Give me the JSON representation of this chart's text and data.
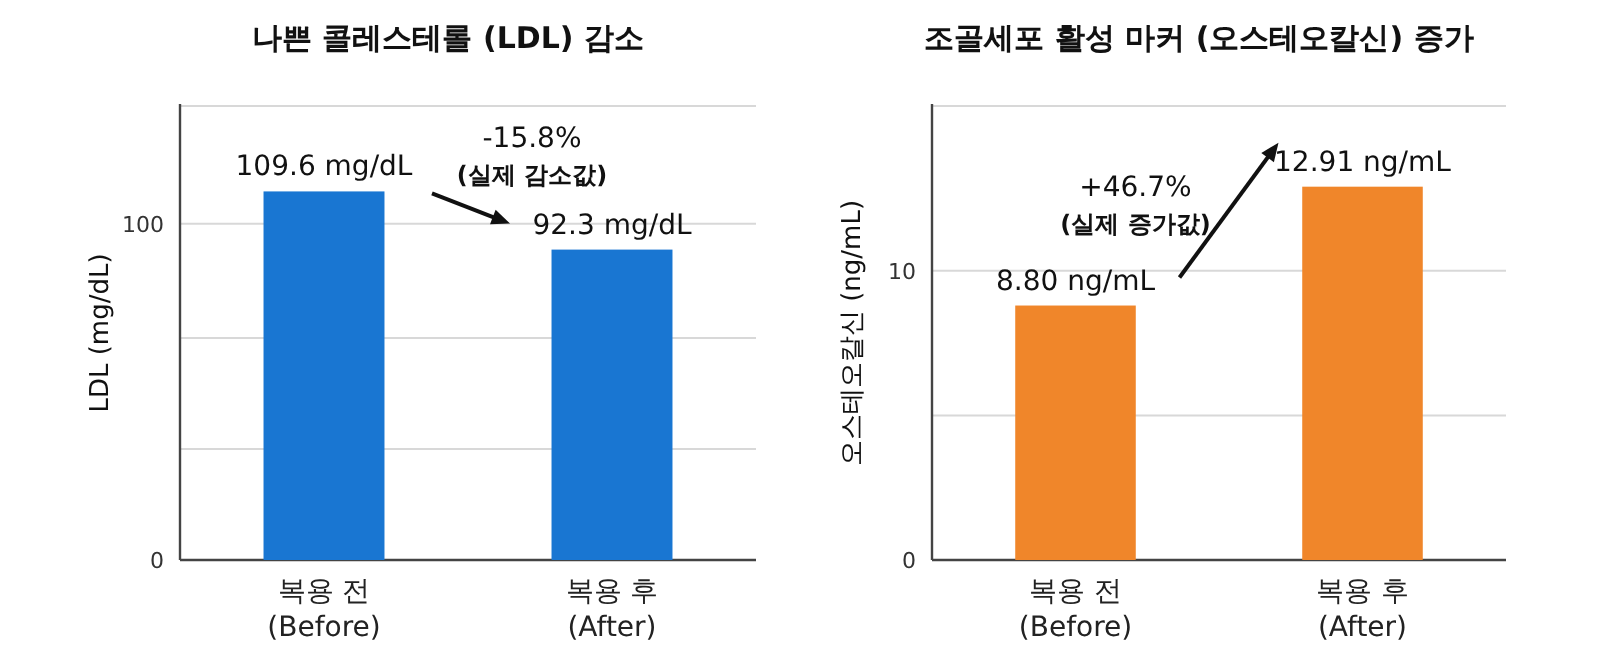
{
  "chart_data": [
    {
      "type": "bar",
      "title": "나쁜 콜레스테롤 (LDL) 감소",
      "ylabel": "LDL (mg/dL)",
      "categories": [
        "복용 전\n(Before)",
        "복용 후\n(After)"
      ],
      "values": [
        109.6,
        92.3
      ],
      "value_labels": [
        "109.6 mg/dL",
        "92.3 mg/dL"
      ],
      "color": "#1976d2",
      "ylim": [
        0,
        135
      ],
      "yticks": [
        0,
        {
          "value": 33,
          "label": null
        },
        {
          "value": 66,
          "label": null
        },
        100,
        {
          "value": 135,
          "label": null
        }
      ],
      "grid": "y",
      "annotations": [
        "-15.8%",
        "(실제 감소값)"
      ]
    },
    {
      "type": "bar",
      "title": "조골세포 활성 마커 (오스테오칼신) 증가",
      "ylabel": "오스테오칼신 (ng/mL)",
      "categories": [
        "복용 전\n(Before)",
        "복용 후\n(After)"
      ],
      "values": [
        8.8,
        12.91
      ],
      "value_labels": [
        "8.80 ng/mL",
        "12.91 ng/mL"
      ],
      "color": "#f0862a",
      "ylim": [
        0,
        15.7
      ],
      "yticks": [
        0,
        {
          "value": 5,
          "label": null
        },
        10,
        {
          "value": 15.7,
          "label": null
        }
      ],
      "grid": "y",
      "annotations": [
        "+46.7%",
        "(실제 증가값)"
      ]
    }
  ]
}
